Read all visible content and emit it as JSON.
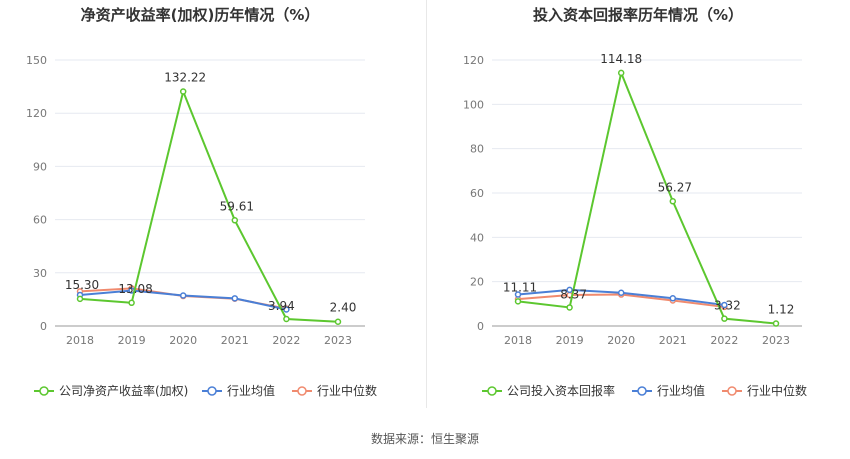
{
  "footer": {
    "source_label": "数据来源：恒生聚源"
  },
  "chart_data": [
    {
      "type": "line",
      "title": "净资产收益率(加权)历年情况（%）",
      "x": [
        "2018",
        "2019",
        "2020",
        "2021",
        "2022",
        "2023"
      ],
      "ylim": [
        0,
        150
      ],
      "yticks": [
        0,
        30,
        60,
        90,
        120,
        150
      ],
      "grid": true,
      "legend_position": "bottom",
      "series": [
        {
          "name": "公司净资产收益率(加权)",
          "color": "#5cc72f",
          "values": [
            15.3,
            13.08,
            132.22,
            59.61,
            3.94,
            2.4
          ],
          "labels": [
            "15.30",
            "13.08",
            "132.22",
            "59.61",
            "3.94",
            "2.40"
          ]
        },
        {
          "name": "行业均值",
          "color": "#4a7fd6",
          "values": [
            17.5,
            20.0,
            17.2,
            15.6,
            9.3,
            null
          ]
        },
        {
          "name": "行业中位数",
          "color": "#f08a6e",
          "values": [
            19.5,
            21.2,
            16.9,
            15.4,
            9.8,
            null
          ]
        }
      ]
    },
    {
      "type": "line",
      "title": "投入资本回报率历年情况（%）",
      "x": [
        "2018",
        "2019",
        "2020",
        "2021",
        "2022",
        "2023"
      ],
      "ylim": [
        0,
        120
      ],
      "yticks": [
        0,
        20,
        40,
        60,
        80,
        100,
        120
      ],
      "grid": true,
      "legend_position": "bottom",
      "series": [
        {
          "name": "公司投入资本回报率",
          "color": "#5cc72f",
          "values": [
            11.11,
            8.37,
            114.18,
            56.27,
            3.32,
            1.12
          ],
          "labels": [
            "11.11",
            "8.37",
            "114.18",
            "56.27",
            "3.32",
            "1.12"
          ]
        },
        {
          "name": "行业均值",
          "color": "#4a7fd6",
          "values": [
            14.2,
            16.3,
            15.0,
            12.5,
            9.5,
            null
          ]
        },
        {
          "name": "行业中位数",
          "color": "#f08a6e",
          "values": [
            12.1,
            14.0,
            14.2,
            11.5,
            8.6,
            null
          ]
        }
      ]
    }
  ]
}
